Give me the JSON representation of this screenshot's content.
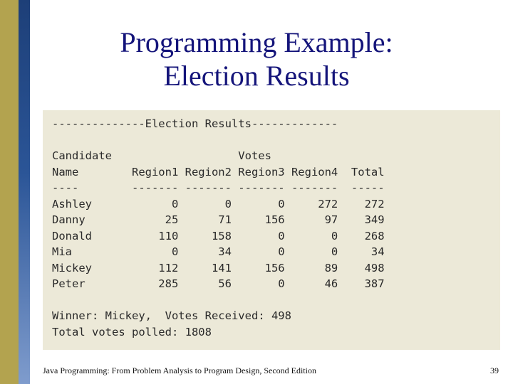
{
  "slide": {
    "title_line1": "Programming Example:",
    "title_line2": "Election Results"
  },
  "console": {
    "lines": [
      "--------------Election Results-------------",
      "",
      "Candidate                   Votes",
      "Name        Region1 Region2 Region3 Region4  Total",
      "----        ------- ------- ------- -------  -----",
      "Ashley            0       0       0     272    272",
      "Danny            25      71     156      97    349",
      "Donald          110     158       0       0    268",
      "Mia               0      34       0       0     34",
      "Mickey          112     141     156      89    498",
      "Peter           285      56       0      46    387",
      "",
      "Winner: Mickey,  Votes Received: 498",
      "Total votes polled: 1808"
    ]
  },
  "footer": {
    "text": "Java Programming: From Problem Analysis to Program Design, Second Edition",
    "page_number": "39"
  }
}
